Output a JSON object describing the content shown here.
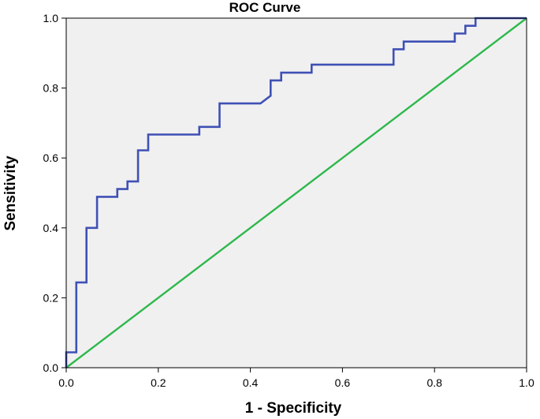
{
  "chart_data": {
    "type": "line",
    "title": "ROC Curve",
    "xlabel": "1 - Specificity",
    "ylabel": "Sensitivity",
    "xlim": [
      0.0,
      1.0
    ],
    "ylim": [
      0.0,
      1.0
    ],
    "x_ticks": [
      "0.0",
      "0.2",
      "0.4",
      "0.6",
      "0.8",
      "1.0"
    ],
    "y_ticks": [
      "0.0",
      "0.2",
      "0.4",
      "0.6",
      "0.8",
      "1.0"
    ],
    "grid": false,
    "background_color": "#f0f0f0",
    "series": [
      {
        "color": "#3f51b5",
        "x": [
          0.0,
          0.0,
          0.022,
          0.022,
          0.044,
          0.044,
          0.067,
          0.067,
          0.111,
          0.111,
          0.133,
          0.133,
          0.156,
          0.156,
          0.178,
          0.178,
          0.289,
          0.289,
          0.333,
          0.333,
          0.422,
          0.444,
          0.444,
          0.467,
          0.467,
          0.533,
          0.533,
          0.711,
          0.711,
          0.733,
          0.733,
          0.844,
          0.844,
          0.867,
          0.867,
          0.889,
          0.889,
          1.0
        ],
        "y": [
          0.0,
          0.044,
          0.044,
          0.244,
          0.244,
          0.4,
          0.4,
          0.489,
          0.489,
          0.511,
          0.511,
          0.533,
          0.533,
          0.622,
          0.622,
          0.667,
          0.667,
          0.689,
          0.689,
          0.756,
          0.756,
          0.778,
          0.822,
          0.822,
          0.844,
          0.844,
          0.867,
          0.867,
          0.911,
          0.911,
          0.933,
          0.933,
          0.956,
          0.956,
          0.978,
          0.978,
          1.0,
          1.0
        ]
      },
      {
        "color": "#2eb84c",
        "x": [
          0.0,
          1.0
        ],
        "y": [
          0.0,
          1.0
        ]
      }
    ]
  }
}
